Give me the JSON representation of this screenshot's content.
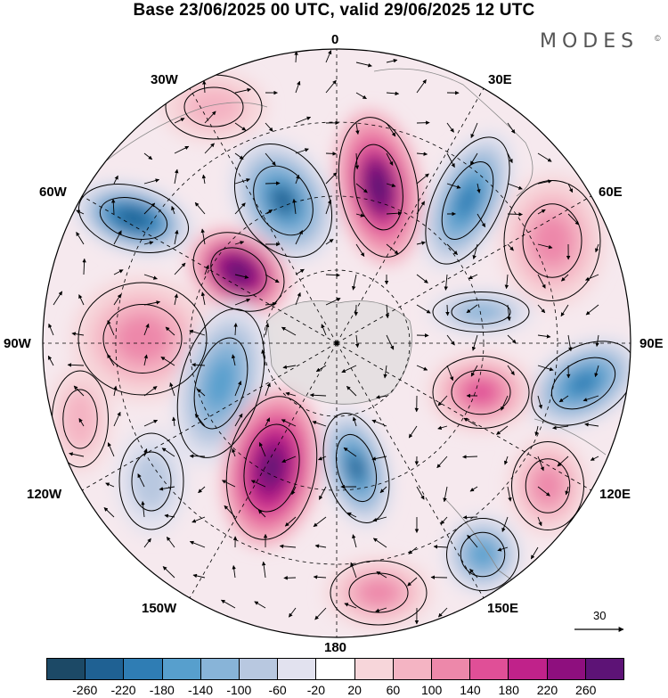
{
  "title": "Base 23/06/2025 00 UTC, valid 29/06/2025 12 UTC",
  "brand": "MODES",
  "brand_mark": "©",
  "projection": "polar-stereographic-south",
  "longitude_labels": {
    "lon_0": "0",
    "lon_30e": "30E",
    "lon_60e": "60E",
    "lon_90e": "90E",
    "lon_120e": "120E",
    "lon_150e": "150E",
    "lon_180": "180",
    "lon_150w": "150W",
    "lon_120w": "120W",
    "lon_90w": "90W",
    "lon_60w": "60W",
    "lon_30w": "30W"
  },
  "wind_scale": {
    "value": "30"
  },
  "colorbar": {
    "colors": [
      "#1c4966",
      "#1f6193",
      "#2f7db4",
      "#579fcd",
      "#88b4d8",
      "#b8c8e0",
      "#e2e2ef",
      "#ffffff",
      "#f7d6da",
      "#f4b4c3",
      "#ed88aa",
      "#e04f97",
      "#c0228a",
      "#8e0f7e",
      "#5d1376"
    ],
    "ticks": [
      "-260",
      "-220",
      "-180",
      "-140",
      "-100",
      "-60",
      "-20",
      "20",
      "60",
      "100",
      "140",
      "180",
      "220",
      "260"
    ]
  }
}
